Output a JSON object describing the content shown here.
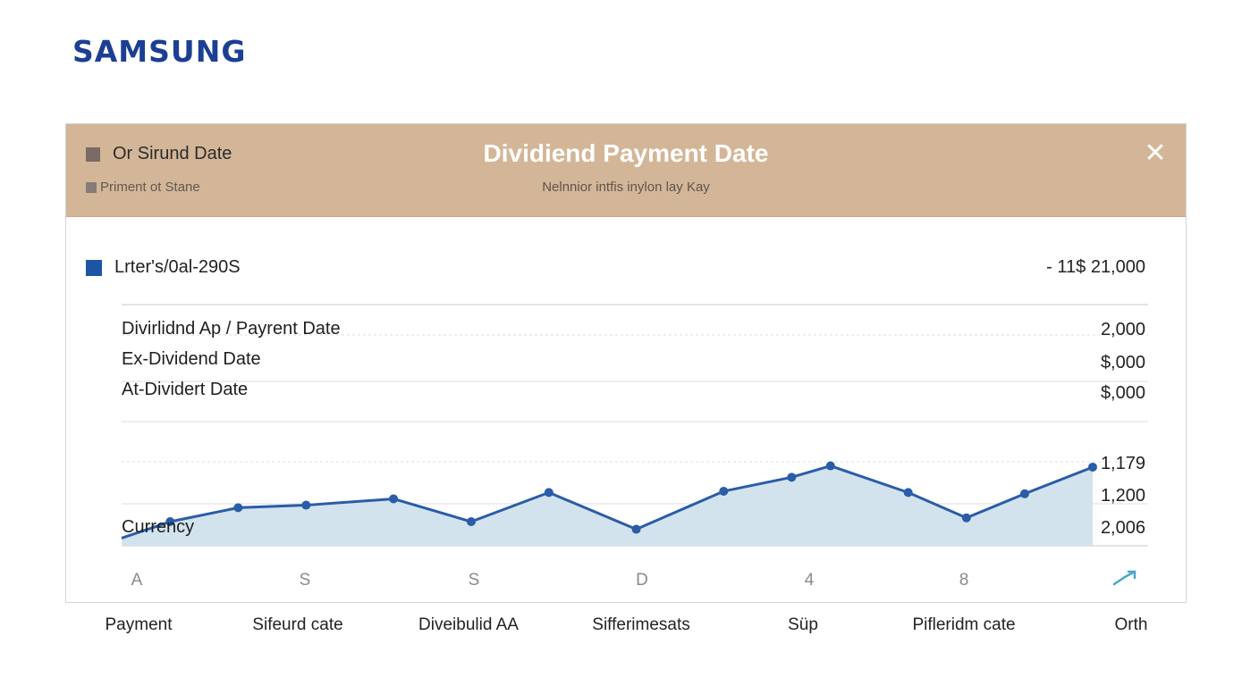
{
  "brand": {
    "logo_text": "SAMSUNG",
    "color": "#1c3f94"
  },
  "header": {
    "left_title": "Or Sirund Date",
    "left_subtitle": "Priment ot Stane",
    "title": "Dividiend Payment Date",
    "subtitle": "Nelnnior intfis inylon lay Kay",
    "close_icon": "close-icon",
    "background": "#d3b697"
  },
  "legend": {
    "label": "Lrter's/0al-290S",
    "amount": "- 11$  21,000",
    "color": "#1d54a6"
  },
  "row_labels": [
    "Divirlidnd Ap / Payrent Date",
    "Ex-Dividend Date",
    "At-Dividert Date",
    "Currency"
  ],
  "right_values": [
    "2,000",
    "$,000",
    "$,000",
    "1,179",
    "1,200",
    "2,006"
  ],
  "x_ticks": [
    "A",
    "S",
    "S",
    "D",
    "4",
    "8"
  ],
  "bottom_labels": [
    "Payment",
    "Sifeurd cate",
    "Diveibulid AA",
    "Sifferimesats",
    "Süp",
    "Pifleridm cate",
    "Orth"
  ],
  "chart_data": {
    "type": "area",
    "title": "Dividiend Payment Date",
    "x_ticks": [
      "A",
      "S",
      "S",
      "D",
      "4",
      "8"
    ],
    "series": [
      {
        "name": "Lrter's/0al-290S",
        "color": "#2a5ca8",
        "fill": "#d3e3ed",
        "points_relative": [
          [
            0.0,
            0.06
          ],
          [
            0.05,
            0.19
          ],
          [
            0.12,
            0.3
          ],
          [
            0.19,
            0.32
          ],
          [
            0.28,
            0.37
          ],
          [
            0.36,
            0.19
          ],
          [
            0.44,
            0.42
          ],
          [
            0.53,
            0.13
          ],
          [
            0.62,
            0.43
          ],
          [
            0.69,
            0.54
          ],
          [
            0.73,
            0.63
          ],
          [
            0.81,
            0.42
          ],
          [
            0.87,
            0.22
          ],
          [
            0.93,
            0.41
          ],
          [
            1.0,
            0.62
          ]
        ]
      }
    ],
    "grid": true,
    "legend": "top-left"
  }
}
